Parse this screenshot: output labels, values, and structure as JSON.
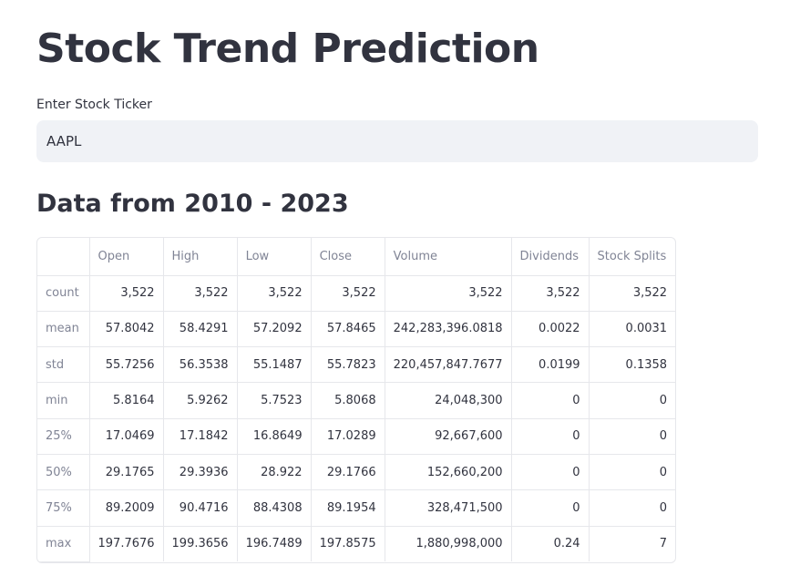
{
  "header": {
    "title": "Stock Trend Prediction"
  },
  "ticker": {
    "label": "Enter Stock Ticker",
    "value": "AAPL"
  },
  "section": {
    "subtitle": "Data from 2010 - 2023"
  },
  "table": {
    "columns": [
      "",
      "Open",
      "High",
      "Low",
      "Close",
      "Volume",
      "Dividends",
      "Stock Splits"
    ],
    "rows": [
      {
        "label": "count",
        "values": [
          "3,522",
          "3,522",
          "3,522",
          "3,522",
          "3,522",
          "3,522",
          "3,522"
        ]
      },
      {
        "label": "mean",
        "values": [
          "57.8042",
          "58.4291",
          "57.2092",
          "57.8465",
          "242,283,396.0818",
          "0.0022",
          "0.0031"
        ]
      },
      {
        "label": "std",
        "values": [
          "55.7256",
          "56.3538",
          "55.1487",
          "55.7823",
          "220,457,847.7677",
          "0.0199",
          "0.1358"
        ]
      },
      {
        "label": "min",
        "values": [
          "5.8164",
          "5.9262",
          "5.7523",
          "5.8068",
          "24,048,300",
          "0",
          "0"
        ]
      },
      {
        "label": "25%",
        "values": [
          "17.0469",
          "17.1842",
          "16.8649",
          "17.0289",
          "92,667,600",
          "0",
          "0"
        ]
      },
      {
        "label": "50%",
        "values": [
          "29.1765",
          "29.3936",
          "28.922",
          "29.1766",
          "152,660,200",
          "0",
          "0"
        ]
      },
      {
        "label": "75%",
        "values": [
          "89.2009",
          "90.4716",
          "88.4308",
          "89.1954",
          "328,471,500",
          "0",
          "0"
        ]
      },
      {
        "label": "max",
        "values": [
          "197.7676",
          "199.3656",
          "196.7489",
          "197.8575",
          "1,880,998,000",
          "0.24",
          "7"
        ]
      }
    ]
  }
}
